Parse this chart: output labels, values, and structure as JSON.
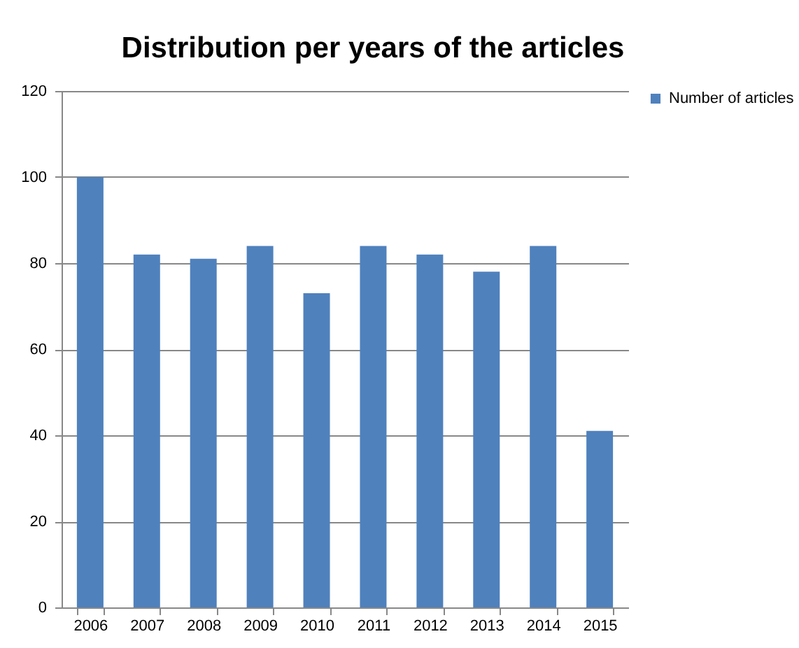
{
  "chart_data": {
    "type": "bar",
    "title": "Distribution  per years of the articles",
    "categories": [
      "2006",
      "2007",
      "2008",
      "2009",
      "2010",
      "2011",
      "2012",
      "2013",
      "2014",
      "2015"
    ],
    "series": [
      {
        "name": "Number of articles",
        "color": "#4f81bd",
        "values": [
          100,
          82,
          81,
          84,
          73,
          84,
          82,
          78,
          84,
          41
        ]
      }
    ],
    "ylim": [
      0,
      120
    ],
    "yticks": [
      0,
      20,
      40,
      60,
      80,
      100,
      120
    ],
    "grid": "y",
    "legend": "right"
  }
}
